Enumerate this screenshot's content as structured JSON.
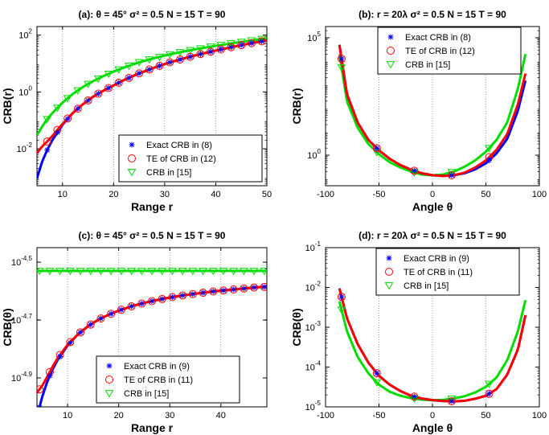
{
  "chart_data": [
    {
      "type": "line",
      "title": "(a):  θ = 45°    σ² = 0.5    N = 15    T = 90",
      "xlabel": "Range  r",
      "ylabel": "CRB(r)",
      "xlim": [
        5,
        50
      ],
      "ylim": [
        0.0005,
        200
      ],
      "yscale": "log",
      "xticks": [
        10,
        20,
        30,
        40,
        50
      ],
      "yticks": [
        {
          "v": 0.01,
          "base": "10",
          "exp": "-2"
        },
        {
          "v": 1,
          "base": "10",
          "exp": "0"
        },
        {
          "v": 100,
          "base": "10",
          "exp": "2"
        }
      ],
      "legend": {
        "placement": "bottom-right",
        "entries": [
          "Exact CRB in (8)",
          "TE of CRB in (12)",
          "CRB in [15]"
        ]
      },
      "series": [
        {
          "name": "Exact CRB in (8)",
          "color": "#0000ff",
          "marker": "star",
          "x": [
            5,
            6,
            7,
            8,
            10,
            12,
            14,
            16,
            18,
            20,
            22,
            25,
            28,
            31,
            34,
            37,
            40,
            43,
            46,
            50
          ],
          "y": [
            0.0009,
            0.0035,
            0.009,
            0.02,
            0.07,
            0.18,
            0.37,
            0.68,
            1.1,
            1.7,
            2.6,
            4.5,
            7.2,
            11,
            15.5,
            21.5,
            28.5,
            37.5,
            48,
            65
          ]
        },
        {
          "name": "TE of CRB in (12)",
          "color": "#ff0000",
          "marker": "circle",
          "x": [
            5,
            6,
            7,
            8,
            10,
            12,
            14,
            16,
            18,
            20,
            22,
            25,
            28,
            31,
            34,
            37,
            40,
            43,
            46,
            50
          ],
          "y": [
            0.007,
            0.012,
            0.018,
            0.028,
            0.075,
            0.18,
            0.37,
            0.68,
            1.1,
            1.7,
            2.6,
            4.5,
            7.2,
            11,
            15.5,
            21.5,
            28.5,
            37.5,
            48,
            65
          ]
        },
        {
          "name": "CRB in [15]",
          "color": "#00dd00",
          "marker": "triangle-down",
          "x": [
            5,
            6,
            7,
            8,
            10,
            12,
            14,
            16,
            18,
            20,
            22,
            25,
            28,
            31,
            34,
            37,
            40,
            43,
            46,
            50
          ],
          "y": [
            0.03,
            0.06,
            0.11,
            0.18,
            0.42,
            0.85,
            1.5,
            2.4,
            3.6,
            5.2,
            7.2,
            11,
            15.5,
            21,
            27,
            34,
            42,
            51,
            61,
            77
          ]
        }
      ],
      "markers_x": [
        7,
        9,
        11,
        13,
        15,
        17,
        19,
        21,
        23,
        25,
        27,
        29,
        31,
        33,
        35,
        37,
        39,
        41,
        43,
        45,
        47,
        49
      ]
    },
    {
      "type": "line",
      "title": "(b):  r = 20λ    σ² = 0.5    N = 15    T = 90",
      "xlabel": "Angle  θ",
      "ylabel": "CRB(r)",
      "xlim": [
        -100,
        100
      ],
      "ylim": [
        0.05,
        300000
      ],
      "yscale": "log",
      "xticks": [
        -100,
        -50,
        0,
        50,
        100
      ],
      "yticks": [
        {
          "v": 1,
          "base": "10",
          "exp": "0"
        },
        {
          "v": 100000,
          "base": "10",
          "exp": "5"
        }
      ],
      "legend": {
        "placement": "top-center",
        "entries": [
          "Exact CRB in (8)",
          "TE of CRB in (12)",
          "CRB in [15]"
        ]
      },
      "series": [
        {
          "name": "Exact CRB in (8)",
          "color": "#0000ff",
          "marker": "star",
          "x": [
            -87,
            -80,
            -70,
            -60,
            -50,
            -40,
            -30,
            -20,
            -10,
            0,
            10,
            20,
            30,
            40,
            50,
            60,
            70,
            80,
            87
          ],
          "y": [
            50000,
            400,
            25,
            4.5,
            1.6,
            0.7,
            0.38,
            0.24,
            0.17,
            0.14,
            0.13,
            0.14,
            0.17,
            0.25,
            0.45,
            1.2,
            5,
            80,
            1500
          ]
        },
        {
          "name": "TE of CRB in (12)",
          "color": "#ff0000",
          "marker": "circle",
          "x": [
            -87,
            -80,
            -70,
            -60,
            -50,
            -40,
            -30,
            -20,
            -10,
            0,
            10,
            20,
            30,
            40,
            50,
            60,
            70,
            80,
            87
          ],
          "y": [
            50000,
            400,
            25,
            4.5,
            1.6,
            0.7,
            0.38,
            0.24,
            0.17,
            0.14,
            0.13,
            0.14,
            0.18,
            0.3,
            0.6,
            1.7,
            8,
            150,
            3000
          ]
        },
        {
          "name": "CRB in [15]",
          "color": "#00dd00",
          "marker": "triangle-down",
          "x": [
            -87,
            -80,
            -70,
            -60,
            -50,
            -40,
            -30,
            -20,
            -10,
            0,
            10,
            20,
            30,
            40,
            50,
            60,
            70,
            80,
            87
          ],
          "y": [
            20000,
            200,
            15,
            3,
            1.1,
            0.5,
            0.3,
            0.2,
            0.15,
            0.14,
            0.15,
            0.2,
            0.32,
            0.6,
            1.4,
            4.5,
            25,
            700,
            20000
          ]
        }
      ],
      "markers_x": [
        -85,
        -52,
        -17,
        18,
        53
      ]
    },
    {
      "type": "line",
      "title": "(c):  θ = 45°    σ² = 0.5    N = 15    T = 90",
      "xlabel": "Range  r",
      "ylabel": "CRB(θ)",
      "xlim": [
        4,
        49
      ],
      "ylim": [
        1e-05,
        3.55e-05
      ],
      "yscale": "log",
      "xticks": [
        10,
        20,
        30,
        40
      ],
      "yticks": [
        {
          "v": 1.25893e-05,
          "base": "10",
          "exp": "-4.9"
        },
        {
          "v": 1.99526e-05,
          "base": "10",
          "exp": "-4.7"
        },
        {
          "v": 3.16228e-05,
          "base": "10",
          "exp": "-4.5"
        }
      ],
      "legend": {
        "placement": "bottom-center",
        "entries": [
          "Exact CRB in (9)",
          "TE of CRB in (11)",
          "CRB in [15]"
        ]
      },
      "series": [
        {
          "name": "Exact CRB in (9)",
          "color": "#0000ff",
          "marker": "star",
          "x": [
            4,
            5,
            6,
            7,
            8,
            10,
            12,
            14,
            16,
            18,
            20,
            23,
            26,
            29,
            32,
            35,
            38,
            41,
            44,
            47,
            49
          ],
          "y": [
            9.2e-06,
            1.08e-05,
            1.22e-05,
            1.34e-05,
            1.45e-05,
            1.63e-05,
            1.78e-05,
            1.9e-05,
            2e-05,
            2.08e-05,
            2.15e-05,
            2.24e-05,
            2.31e-05,
            2.37e-05,
            2.42e-05,
            2.46e-05,
            2.5e-05,
            2.53e-05,
            2.56e-05,
            2.59e-05,
            2.6e-05
          ]
        },
        {
          "name": "TE of CRB in (11)",
          "color": "#ff0000",
          "marker": "circle",
          "x": [
            4,
            5,
            6,
            7,
            8,
            10,
            12,
            14,
            16,
            18,
            20,
            23,
            26,
            29,
            32,
            35,
            38,
            41,
            44,
            47,
            49
          ],
          "y": [
            1.12e-05,
            1.18e-05,
            1.27e-05,
            1.37e-05,
            1.47e-05,
            1.64e-05,
            1.78e-05,
            1.9e-05,
            2e-05,
            2.08e-05,
            2.15e-05,
            2.24e-05,
            2.31e-05,
            2.37e-05,
            2.42e-05,
            2.46e-05,
            2.5e-05,
            2.53e-05,
            2.56e-05,
            2.59e-05,
            2.6e-05
          ]
        },
        {
          "name": "CRB in [15]",
          "color": "#00dd00",
          "marker": "triangle-down",
          "x": [
            4,
            49
          ],
          "y": [
            2.95e-05,
            2.95e-05
          ]
        }
      ],
      "markers_x": [
        4.5,
        6.5,
        8.5,
        10.5,
        12.5,
        14.5,
        16.5,
        18.5,
        20.5,
        22.5,
        24.5,
        26.5,
        28.5,
        30.5,
        32.5,
        34.5,
        36.5,
        38.5,
        40.5,
        42.5,
        44.5,
        46.5,
        48.5
      ]
    },
    {
      "type": "line",
      "title": "(d):  r = 20λ    σ² = 0.5    N = 15    T = 90",
      "xlabel": "Angle  θ",
      "ylabel": "CRB(θ)",
      "xlim": [
        -100,
        100
      ],
      "ylim": [
        1e-05,
        0.1
      ],
      "yscale": "log",
      "xticks": [
        -100,
        -50,
        0,
        50,
        100
      ],
      "yticks": [
        {
          "v": 1e-05,
          "base": "10",
          "exp": "-5"
        },
        {
          "v": 0.0001,
          "base": "10",
          "exp": "-4"
        },
        {
          "v": 0.001,
          "base": "10",
          "exp": "-3"
        },
        {
          "v": 0.01,
          "base": "10",
          "exp": "-2"
        },
        {
          "v": 0.1,
          "base": "10",
          "exp": "-1"
        }
      ],
      "legend": {
        "placement": "top-center",
        "entries": [
          "Exact CRB in (9)",
          "TE of CRB in (11)",
          "CRB in [15]"
        ]
      },
      "series": [
        {
          "name": "Exact CRB in (9)",
          "color": "#0000ff",
          "marker": "star",
          "x": [
            -87,
            -80,
            -70,
            -60,
            -50,
            -40,
            -30,
            -20,
            -10,
            0,
            10,
            20,
            30,
            40,
            50,
            60,
            70,
            80,
            87
          ],
          "y": [
            0.0095,
            0.0017,
            0.00038,
            0.00013,
            6e-05,
            3.6e-05,
            2.5e-05,
            1.9e-05,
            1.62e-05,
            1.48e-05,
            1.4e-05,
            1.37e-05,
            1.42e-05,
            1.6e-05,
            1.9e-05,
            2.8e-05,
            6.5e-05,
            0.00028,
            0.002
          ]
        },
        {
          "name": "TE of CRB in (11)",
          "color": "#ff0000",
          "marker": "circle",
          "x": [
            -87,
            -80,
            -70,
            -60,
            -50,
            -40,
            -30,
            -20,
            -10,
            0,
            10,
            20,
            30,
            40,
            50,
            60,
            70,
            80,
            87
          ],
          "y": [
            0.0095,
            0.0017,
            0.00038,
            0.00013,
            6e-05,
            3.6e-05,
            2.5e-05,
            1.9e-05,
            1.62e-05,
            1.48e-05,
            1.4e-05,
            1.37e-05,
            1.42e-05,
            1.6e-05,
            1.9e-05,
            2.8e-05,
            6.5e-05,
            0.00028,
            0.002
          ]
        },
        {
          "name": "CRB in [15]",
          "color": "#00dd00",
          "marker": "triangle-down",
          "x": [
            -87,
            -80,
            -70,
            -60,
            -50,
            -40,
            -30,
            -20,
            -10,
            0,
            10,
            20,
            30,
            40,
            50,
            60,
            70,
            80,
            87
          ],
          "y": [
            0.0045,
            0.0008,
            0.00018,
            7e-05,
            3.6e-05,
            2.4e-05,
            1.9e-05,
            1.65e-05,
            1.52e-05,
            1.47e-05,
            1.5e-05,
            1.62e-05,
            1.85e-05,
            2.3e-05,
            3.2e-05,
            5.5e-05,
            0.00015,
            0.0008,
            0.0048
          ]
        }
      ],
      "markers_x": [
        -85,
        -52,
        -17,
        18,
        53
      ]
    }
  ]
}
